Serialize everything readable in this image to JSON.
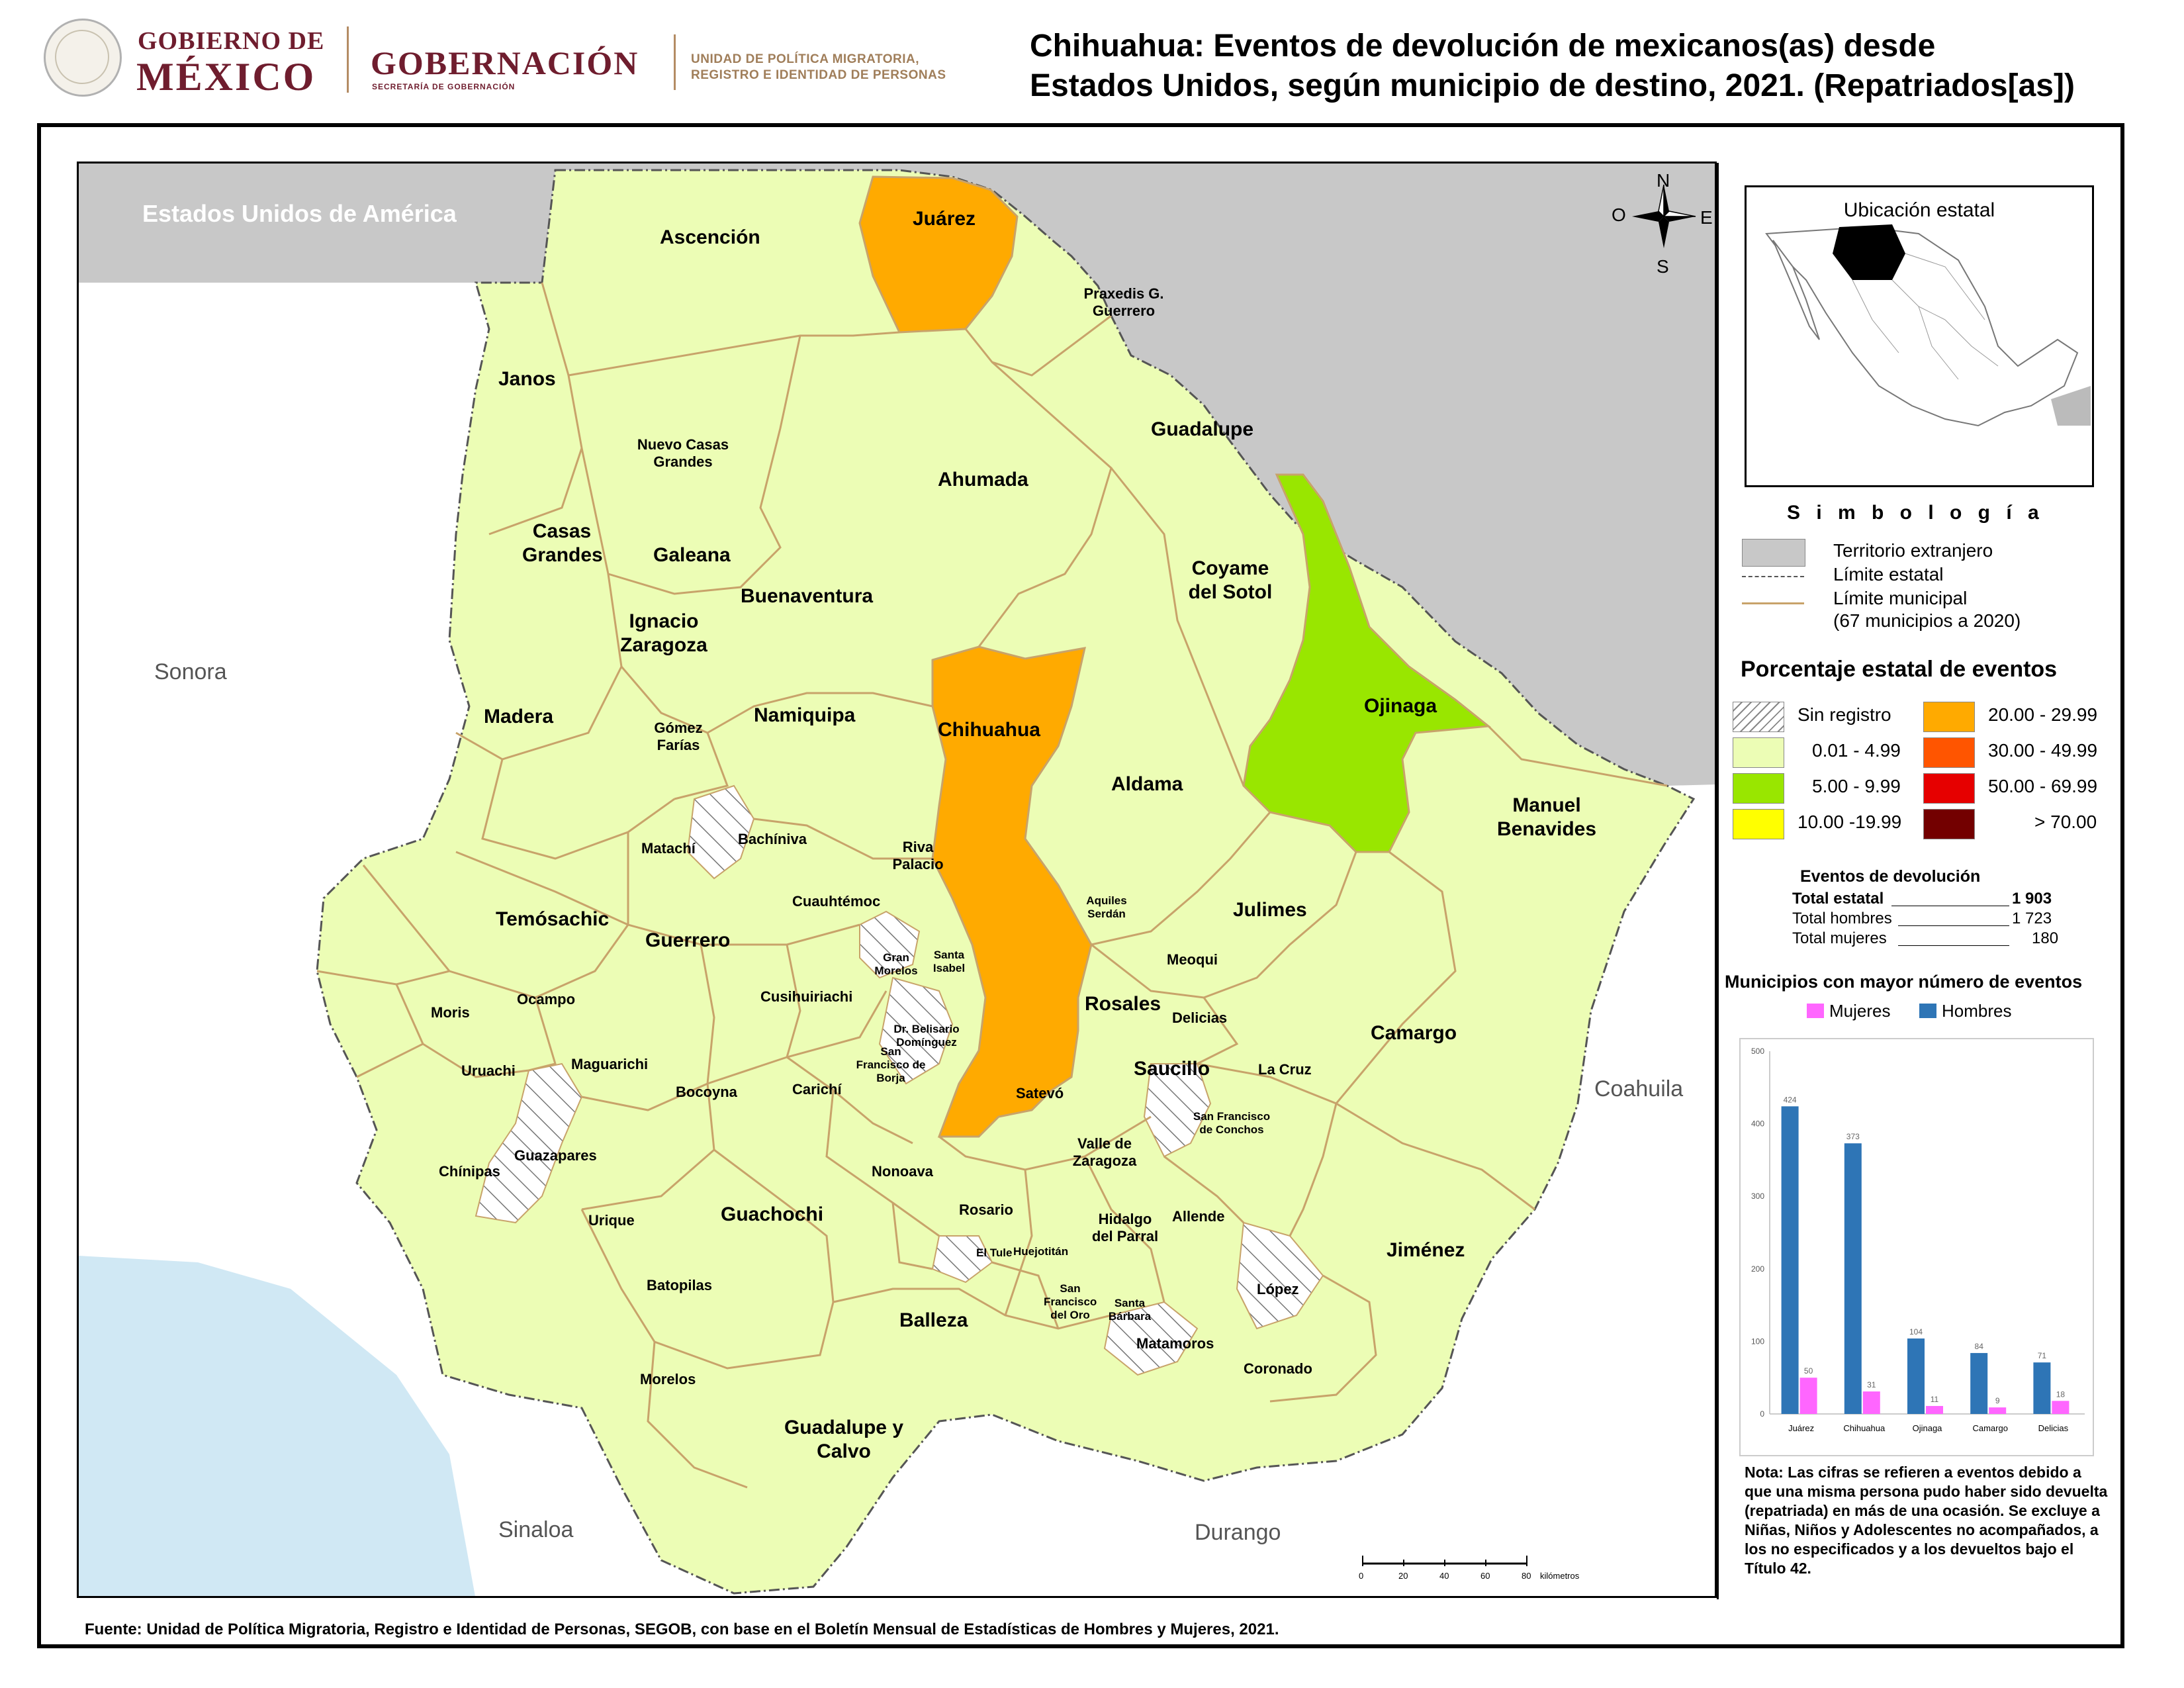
{
  "header": {
    "gov_line1": "GOBIERNO DE",
    "gov_line2": "MÉXICO",
    "ministry": "GOBERNACIÓN",
    "ministry_sub": "SECRETARÍA DE GOBERNACIÓN",
    "unit_line1": "UNIDAD DE POLÍTICA MIGRATORIA,",
    "unit_line2": "REGISTRO E IDENTIDAD DE PERSONAS",
    "title_line1": "Chihuahua: Eventos de devolución de mexicanos(as) desde",
    "title_line2": "Estados Unidos, según municipio de destino, 2021. (Repatriados[as])"
  },
  "colors": {
    "foreign": "#c8c8c8",
    "neighbor": "#ffffff",
    "class_0_01_4_99": "#ecfdb5",
    "class_5_9_99": "#99e600",
    "class_10_19_99": "#ffff00",
    "class_20_29_99": "#ffaa00",
    "class_30_49_99": "#ff5500",
    "class_50_69_99": "#e60000",
    "class_70_plus": "#730000",
    "municipal_border": "#c8a36a",
    "water": "#d0e8f4",
    "hombres": "#2e75b6",
    "mujeres": "#ff66ff"
  },
  "map": {
    "usa_label": "Estados Unidos de América",
    "neighbors": [
      "Sonora",
      "Coahuila",
      "Sinaloa",
      "Durango"
    ],
    "compass": {
      "n": "N",
      "s": "S",
      "e": "E",
      "w": "O"
    },
    "municipios": {
      "juarez": "Juárez",
      "ascencion": "Ascención",
      "praxedis": "Praxedis G. Guerrero",
      "janos": "Janos",
      "guadalupe": "Guadalupe",
      "nuevo_casas": "Nuevo Casas Grandes",
      "ahumada": "Ahumada",
      "casas_grandes": "Casas Grandes",
      "galeana": "Galeana",
      "coyame": "Coyame del Sotol",
      "buenaventura": "Buenaventura",
      "ignacio": "Ignacio Zaragoza",
      "madera": "Madera",
      "namiquipa": "Namiquipa",
      "chihuahua": "Chihuahua",
      "ojinaga": "Ojinaga",
      "gomez_farias": "Gómez Farías",
      "aldama": "Aldama",
      "manuel_benavides": "Manuel Benavides",
      "matachi": "Matachí",
      "bachiniva": "Bachíniva",
      "riva_palacio": "Riva Palacio",
      "cuauhtemoc": "Cuauhtémoc",
      "aquiles": "Aquiles Serdán",
      "julimes": "Julimes",
      "temosachic": "Temósachic",
      "guerrero": "Guerrero",
      "gran_morelos": "Gran Morelos",
      "santa_isabel": "Santa Isabel",
      "meoqui": "Meoqui",
      "moris": "Moris",
      "ocampo": "Ocampo",
      "cusihuiriachi": "Cusihuiriachi",
      "rosales": "Rosales",
      "delicias": "Delicias",
      "camargo": "Camargo",
      "belisario": "Dr. Belisario Domínguez",
      "uruachi": "Uruachi",
      "maguarichi": "Maguarichi",
      "san_francisco_borja": "San Francisco de Borja",
      "saucillo": "Saucillo",
      "la_cruz": "La Cruz",
      "bocoyna": "Bocoyna",
      "carichi": "Carichí",
      "satevo": "Satevó",
      "sf_conchos": "San Francisco de Conchos",
      "guazapares": "Guazapares",
      "valle_zaragoza": "Valle de Zaragoza",
      "chinipas": "Chínipas",
      "nonoava": "Nonoava",
      "urique": "Urique",
      "guachochi": "Guachochi",
      "rosario": "Rosario",
      "hidalgo_parral": "Hidalgo del Parral",
      "allende": "Allende",
      "jimenez": "Jiménez",
      "el_tule": "El Tule",
      "huejotitan": "Huejotitán",
      "batopilas": "Batopilas",
      "lopez": "López",
      "sf_oro": "San Francisco del Oro",
      "santa_barbara": "Santa Bárbara",
      "balleza": "Balleza",
      "matamoros": "Matamoros",
      "morelos": "Morelos",
      "coronado": "Coronado",
      "guadalupe_calvo": "Guadalupe y Calvo"
    },
    "scale": {
      "ticks": [
        "0",
        "20",
        "40",
        "60",
        "80"
      ],
      "unit": "kilómetros"
    }
  },
  "locator": {
    "title": "Ubicación estatal"
  },
  "legend": {
    "title": "S i m b o l o g í a",
    "foreign": "Territorio extranjero",
    "state_limit": "Límite estatal",
    "municipal_limit": "Límite municipal",
    "municipal_note": "(67 municipios a 2020)",
    "pct_title": "Porcentaje estatal de eventos",
    "classes": [
      {
        "label": "Sin registro",
        "color": "hatch"
      },
      {
        "label": "0.01  - 4.99",
        "color": "#ecfdb5"
      },
      {
        "label": "5.00  - 9.99",
        "color": "#99e600"
      },
      {
        "label": "10.00 -19.99",
        "color": "#ffff00"
      },
      {
        "label": "20.00 - 29.99",
        "color": "#ffaa00"
      },
      {
        "label": "30.00 - 49.99",
        "color": "#ff5500"
      },
      {
        "label": "50.00 - 69.99",
        "color": "#e60000"
      },
      {
        "label": "> 70.00",
        "color": "#730000"
      }
    ]
  },
  "events": {
    "title": "Eventos de devolución",
    "total_label": "Total estatal",
    "total_value": "1 903",
    "men_label": "Total hombres",
    "men_value": "1 723",
    "women_label": "Total mujeres",
    "women_value": "180"
  },
  "chart_title": "Municipios con mayor número de eventos",
  "chart_data": {
    "type": "bar",
    "title": "Municipios con mayor número de eventos",
    "categories": [
      "Juárez",
      "Chihuahua",
      "Ojinaga",
      "Camargo",
      "Delicias"
    ],
    "series": [
      {
        "name": "Hombres",
        "values": [
          424,
          373,
          104,
          84,
          71
        ],
        "labels": [
          "424",
          "373",
          "104",
          "84",
          "71"
        ]
      },
      {
        "name": "Mujeres",
        "values": [
          50,
          31,
          11,
          9,
          18
        ],
        "labels": [
          "50",
          "31",
          "11",
          "9",
          "18"
        ]
      }
    ],
    "ylim": [
      0,
      500
    ],
    "yticks": [
      "0",
      "100",
      "200",
      "300",
      "400",
      "500"
    ],
    "legend": "top",
    "grid": false
  },
  "nota": "Nota: Las cifras se refieren a eventos debido a que una misma persona pudo haber sido devuelta (repatriada) en más de una ocasión. Se excluye a Niñas, Niños y Adolescentes no acompañados, a los no especificados y a los devueltos bajo el Título 42.",
  "fuente": "Fuente: Unidad de Política Migratoria, Registro e Identidad de Personas, SEGOB, con base en el Boletín Mensual de Estadísticas de Hombres y Mujeres, 2021."
}
